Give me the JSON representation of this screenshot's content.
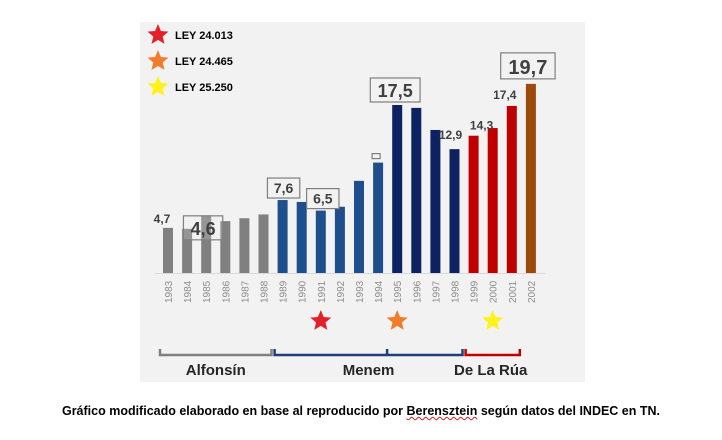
{
  "chart_data": {
    "type": "bar",
    "title": "",
    "xlabel": "",
    "ylabel": "",
    "ylim": [
      0,
      20
    ],
    "grid": false,
    "categories": [
      "1983",
      "1984",
      "1985",
      "1986",
      "1987",
      "1988",
      "1989",
      "1990",
      "1991",
      "1992",
      "1993",
      "1994",
      "1995",
      "1996",
      "1997",
      "1998",
      "1999",
      "2000",
      "2001",
      "2002"
    ],
    "values": [
      4.7,
      4.6,
      6.0,
      5.4,
      5.7,
      6.1,
      7.6,
      7.4,
      6.5,
      6.9,
      9.6,
      11.5,
      17.5,
      17.2,
      14.9,
      12.9,
      14.3,
      15.1,
      17.4,
      19.7
    ],
    "bar_colors": [
      "#808080",
      "#808080",
      "#808080",
      "#808080",
      "#808080",
      "#808080",
      "#1f4e8c",
      "#1f4e8c",
      "#1f4e8c",
      "#1f4e8c",
      "#1f4e8c",
      "#1f4e8c",
      "#0d2361",
      "#0d2361",
      "#0d2361",
      "#0d2361",
      "#c00000",
      "#c00000",
      "#c00000",
      "#9c4a0c"
    ],
    "data_labels": [
      {
        "category": "1983",
        "text": "4,7",
        "boxed": false,
        "size": "small"
      },
      {
        "category": "1984",
        "text": "4,6",
        "boxed": true,
        "size": "large"
      },
      {
        "category": "1989",
        "text": "7,6",
        "boxed": true,
        "size": "medium"
      },
      {
        "category": "1991",
        "text": "6,5",
        "boxed": true,
        "size": "medium"
      },
      {
        "category": "1994",
        "text": "",
        "boxed": true,
        "size": "tiny"
      },
      {
        "category": "1995",
        "text": "17,5",
        "boxed": true,
        "size": "large"
      },
      {
        "category": "1998",
        "text": "12,9",
        "boxed": false,
        "size": "small"
      },
      {
        "category": "1999",
        "text": "14,3",
        "boxed": false,
        "size": "small"
      },
      {
        "category": "2001",
        "text": "17,4",
        "boxed": false,
        "size": "small"
      },
      {
        "category": "2002",
        "text": "19,7",
        "boxed": true,
        "size": "xlarge"
      }
    ],
    "legend": {
      "placement": "top-left",
      "entries": [
        {
          "label": "LEY 24.013",
          "color": "#e3202a",
          "marker": "star"
        },
        {
          "label": "LEY 24.465",
          "color": "#f27b2c",
          "marker": "star"
        },
        {
          "label": "LEY 25.250",
          "color": "#fff21a",
          "marker": "star"
        }
      ]
    },
    "annotations": {
      "law_stars": [
        {
          "category": "1991",
          "color": "#e3202a"
        },
        {
          "category": "1995",
          "color": "#f27b2c"
        },
        {
          "category": "2000",
          "color": "#fff21a"
        }
      ],
      "periods": [
        {
          "label": "Alfonsín",
          "from": "1983",
          "to": "1988",
          "color": "#808080"
        },
        {
          "label": "Menem",
          "from": "1989",
          "to": "1998",
          "color": "#1f3f7a",
          "split_at": "1994"
        },
        {
          "label": "De La Rúa",
          "from": "1999",
          "to": "2001",
          "color": "#c00000"
        }
      ]
    }
  },
  "caption": {
    "before": "Gráfico modificado elaborado en base al reproducido por ",
    "flagged_word": "Berensztein",
    "after": " según datos del INDEC en TN."
  }
}
